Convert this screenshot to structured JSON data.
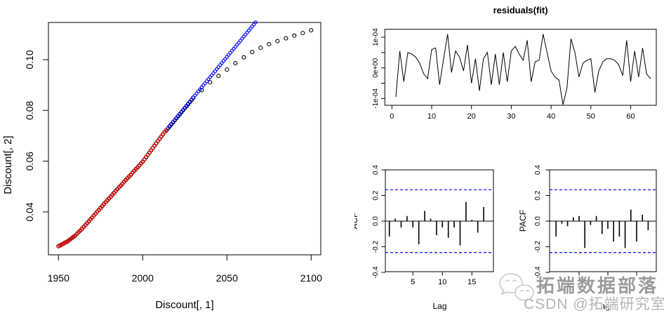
{
  "watermark": {
    "icon": "wechat-bubbles-icon",
    "brand_text": "拓端数据部落",
    "credit_text": "CSDN @拓端研究室",
    "brand_color": "#9b9b9b",
    "credit_color": "#b5b5b5",
    "icon_stroke": "#c9c9c9"
  },
  "palette": {
    "observed": "#000000",
    "fitted": "#FF0000",
    "forecast": "#0000FF",
    "confidence_band": "#0000FF",
    "axis": "#000000",
    "background": "#FFFFFF"
  },
  "chart_data": [
    {
      "id": "discount-scatter",
      "type": "scatter",
      "xlabel": "Discount[, 1]",
      "ylabel": "Discount[, 2]",
      "xticks": [
        1950,
        2000,
        2050,
        2100
      ],
      "yticks": [
        0.04,
        0.06,
        0.08,
        0.1
      ],
      "xlim": [
        1944,
        2106
      ],
      "ylim": [
        0.023,
        0.1147
      ],
      "grid": false,
      "legend": "none",
      "series": [
        {
          "name": "observed",
          "marker": "open-circle",
          "color": "#000000",
          "marker_r": 2.5,
          "segments": [
            {
              "start_x": 1950,
              "step": 1,
              "values": [
                0.0265,
                0.0268,
                0.0272,
                0.0275,
                0.0279,
                0.0282,
                0.0287,
                0.0292,
                0.0297,
                0.0302,
                0.0307,
                0.0314,
                0.0321,
                0.0327,
                0.0334,
                0.0341,
                0.0348,
                0.0356,
                0.0363,
                0.0371,
                0.0378,
                0.0386,
                0.0393,
                0.0401,
                0.0408,
                0.0416,
                0.0423,
                0.0431,
                0.0438,
                0.0446,
                0.0453,
                0.046,
                0.0468,
                0.0475,
                0.0483,
                0.049,
                0.0497,
                0.0504,
                0.0511,
                0.0519,
                0.0526,
                0.0533,
                0.054,
                0.0547,
                0.0555,
                0.0562,
                0.0569,
                0.0576,
                0.0583,
                0.0591,
                0.0598,
                0.0607,
                0.0616,
                0.0625,
                0.0634,
                0.0643,
                0.0652,
                0.0661,
                0.067,
                0.0679,
                0.0688,
                0.0697,
                0.0706,
                0.0715,
                0.0721,
                0.0729,
                0.0737,
                0.0745,
                0.0753,
                0.0761,
                0.0769,
                0.0777,
                0.0785,
                0.0793,
                0.0801,
                0.0809,
                0.0817,
                0.0825,
                0.0833,
                0.0841
              ]
            },
            {
              "start_x": 2030,
              "step": 5,
              "values": [
                0.085,
                0.088,
                0.0911,
                0.0936,
                0.0961,
                0.0986,
                0.1009,
                0.103,
                0.1047,
                0.1061,
                0.1073,
                0.1084,
                0.1095,
                0.1105,
                0.1116
              ]
            }
          ]
        },
        {
          "name": "forecast",
          "marker": "open-circle",
          "color": "#0000FF",
          "marker_r": 2.1,
          "segments": [
            {
              "start_x": 2014,
              "step": 1,
              "values": [
                0.0723,
                0.0731,
                0.0739,
                0.0747,
                0.0755,
                0.0763,
                0.0771,
                0.0779,
                0.0787,
                0.0795,
                0.0803,
                0.0811,
                0.0819,
                0.0827,
                0.0835,
                0.0843,
                0.0851,
                0.0859,
                0.0867,
                0.0875,
                0.0883,
                0.0891,
                0.0899,
                0.0907,
                0.0915,
                0.0923,
                0.0931,
                0.0939,
                0.0947,
                0.0955,
                0.0963,
                0.0971,
                0.0979,
                0.0987,
                0.0995,
                0.1003,
                0.1011,
                0.1019,
                0.1027,
                0.1035,
                0.1043,
                0.1051,
                0.1059,
                0.1067,
                0.1075,
                0.1083,
                0.1091,
                0.1099,
                0.1107,
                0.1115,
                0.1123,
                0.1131,
                0.1139,
                0.1147
              ]
            }
          ]
        },
        {
          "name": "fitted",
          "marker": "open-circle",
          "color": "#FF0000",
          "marker_r": 2.1,
          "segments": [
            {
              "start_x": 1950,
              "step": 1,
              "values": [
                0.0265,
                0.0268,
                0.0272,
                0.0275,
                0.0279,
                0.0282,
                0.0287,
                0.0292,
                0.0297,
                0.0302,
                0.0307,
                0.0314,
                0.0321,
                0.0327,
                0.0334,
                0.0341,
                0.0348,
                0.0356,
                0.0363,
                0.0371,
                0.0378,
                0.0386,
                0.0393,
                0.0401,
                0.0408,
                0.0416,
                0.0423,
                0.0431,
                0.0438,
                0.0446,
                0.0453,
                0.046,
                0.0468,
                0.0475,
                0.0483,
                0.049,
                0.0497,
                0.0504,
                0.0511,
                0.0519,
                0.0526,
                0.0533,
                0.054,
                0.0547,
                0.0555,
                0.0562,
                0.0569,
                0.0576,
                0.0583,
                0.0591,
                0.0598,
                0.0607,
                0.0616,
                0.0625,
                0.0634,
                0.0643,
                0.0652,
                0.0661,
                0.067,
                0.0679,
                0.0688,
                0.0697,
                0.0706,
                0.0715,
                0.0723
              ]
            }
          ]
        }
      ]
    },
    {
      "id": "residuals",
      "type": "line",
      "title": "residuals(fit)",
      "xlabel": "",
      "ylabel": "",
      "x_start": 1,
      "x_step": 1,
      "xticks": [
        0,
        10,
        20,
        30,
        40,
        50,
        60
      ],
      "y_unit": "1e-04",
      "yticks_e4": [
        -1,
        -0.5,
        0,
        0.5,
        1
      ],
      "ytick_labels": [
        "-1e-04",
        "",
        "0e+00",
        "",
        "1e-04"
      ],
      "ylim_e4": [
        -1.3,
        1.22
      ],
      "line_color": "#000000",
      "values_e4": [
        -0.95,
        0.55,
        -0.45,
        0.5,
        0.45,
        0.35,
        0.15,
        -0.2,
        -0.35,
        0.6,
        0.65,
        -0.55,
        0.3,
        1.1,
        -0.15,
        0.55,
        0.35,
        -0.1,
        0.75,
        -0.5,
        0.3,
        -0.75,
        0.3,
        0.5,
        -0.55,
        0.45,
        -0.55,
        0.5,
        -0.45,
        0.55,
        0.7,
        0.45,
        0.25,
        0.9,
        -0.45,
        0.2,
        0.25,
        1.1,
        0.5,
        -0.1,
        -0.3,
        -0.4,
        -1.2,
        -0.65,
        0.95,
        0.5,
        -0.3,
        0.15,
        0.25,
        0.3,
        -0.8,
        -0.1,
        0.2,
        0.3,
        0.3,
        0.25,
        0.1,
        -0.25,
        0.9,
        -0.45,
        0.55,
        -0.3,
        0.65,
        -0.2,
        -0.35
      ]
    },
    {
      "id": "acf",
      "type": "bar",
      "ylabel": "ACF",
      "xlabel": "Lag",
      "lag_start": 1,
      "xticks": [
        5,
        10,
        15
      ],
      "yticks": [
        -0.4,
        -0.2,
        0.0,
        0.2,
        0.4
      ],
      "ylim": [
        -0.4,
        0.4
      ],
      "conf_band": 0.245,
      "conf_color": "#0000FF",
      "xtick_labels_visible": true,
      "values": [
        -0.12,
        0.02,
        -0.05,
        0.04,
        -0.05,
        -0.18,
        0.08,
        0.02,
        -0.11,
        -0.05,
        -0.13,
        -0.05,
        -0.19,
        0.15,
        0.01,
        -0.09,
        0.11
      ]
    },
    {
      "id": "pacf",
      "type": "bar",
      "ylabel": "PACF",
      "xlabel": "Lag",
      "lag_start": 1,
      "xticks": [
        5,
        10,
        15
      ],
      "yticks": [
        -0.4,
        -0.2,
        0.0,
        0.2,
        0.4
      ],
      "ylim": [
        -0.4,
        0.4
      ],
      "conf_band": 0.245,
      "conf_color": "#0000FF",
      "xtick_labels_visible": false,
      "values": [
        -0.12,
        -0.02,
        -0.04,
        0.03,
        0.04,
        -0.21,
        -0.03,
        0.04,
        -0.1,
        -0.06,
        -0.16,
        -0.12,
        -0.21,
        0.09,
        -0.16,
        0.05,
        -0.07
      ]
    }
  ]
}
